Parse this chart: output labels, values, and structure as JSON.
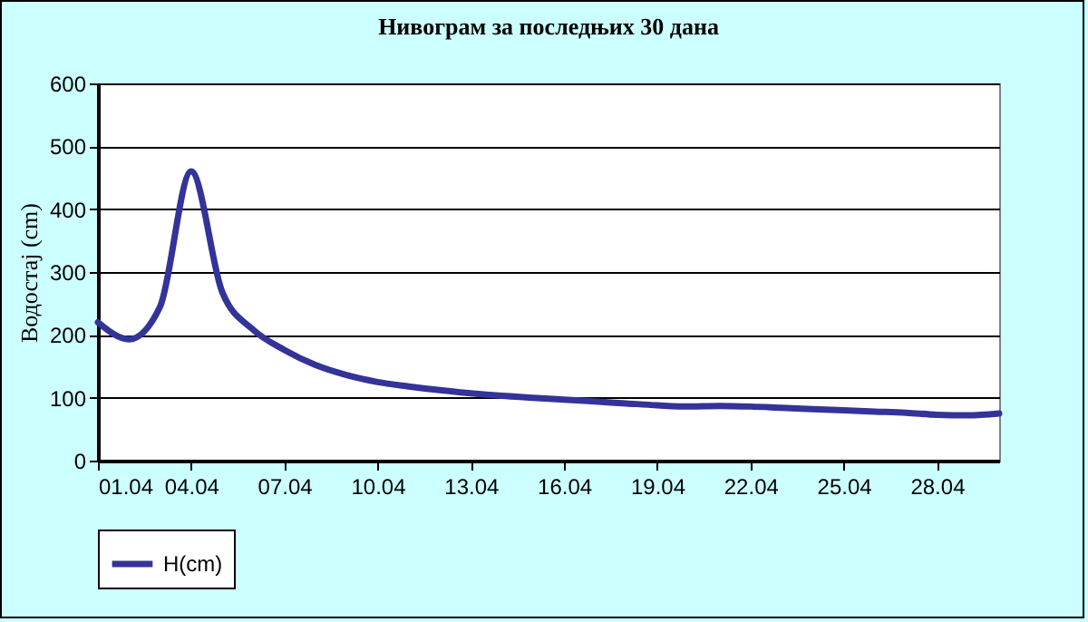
{
  "chart_data": {
    "type": "line",
    "title": "Нивограм за последњих 30 дана",
    "ylabel": "Водостај (cm)",
    "x": [
      "--04-01",
      "--04-02",
      "--04-03",
      "--04-04",
      "--04-05",
      "--04-06",
      "--04-07",
      "--04-08",
      "--04-09",
      "--04-10",
      "--04-11",
      "--04-12",
      "--04-13",
      "--04-14",
      "--04-15",
      "--04-16",
      "--04-17",
      "--04-18",
      "--04-19",
      "--04-20",
      "--04-21",
      "--04-22",
      "--04-23",
      "--04-24",
      "--04-25",
      "--04-26",
      "--04-27",
      "--04-28",
      "--04-29",
      "--04-30"
    ],
    "series": [
      {
        "name": "H(cm)",
        "color": "#333399",
        "values": [
          220,
          193,
          245,
          460,
          268,
          208,
          176,
          152,
          136,
          125,
          118,
          112,
          107,
          103,
          100,
          97,
          94,
          91,
          88,
          86,
          87,
          86,
          84,
          82,
          80,
          78,
          76,
          73,
          72,
          75
        ]
      }
    ],
    "xlim": [
      "--04-01",
      "--04-30"
    ],
    "xticks": [
      {
        "value": "--04-01",
        "label": "01.04"
      },
      {
        "value": "--04-04",
        "label": "04.04"
      },
      {
        "value": "--04-07",
        "label": "07.04"
      },
      {
        "value": "--04-10",
        "label": "10.04"
      },
      {
        "value": "--04-13",
        "label": "13.04"
      },
      {
        "value": "--04-16",
        "label": "16.04"
      },
      {
        "value": "--04-19",
        "label": "19.04"
      },
      {
        "value": "--04-22",
        "label": "22.04"
      },
      {
        "value": "--04-25",
        "label": "25.04"
      },
      {
        "value": "--04-28",
        "label": "28.04"
      }
    ],
    "ylim": [
      0,
      600
    ],
    "yticks": [
      0,
      100,
      200,
      300,
      400,
      500,
      600
    ],
    "grid": "y",
    "legend": "bottom",
    "marker": "none",
    "line_style": "solid"
  }
}
